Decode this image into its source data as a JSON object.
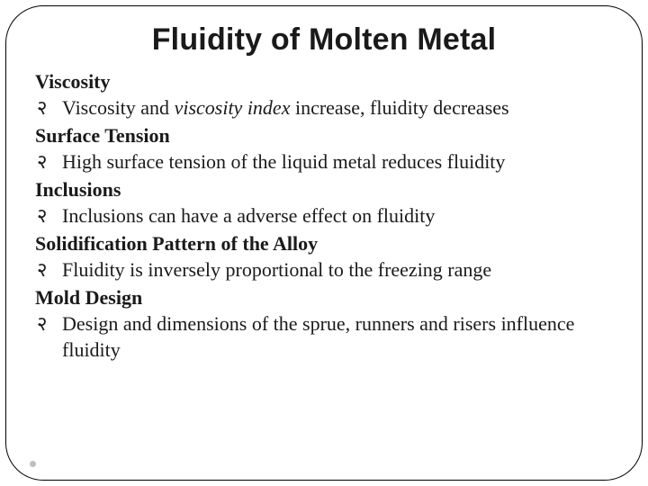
{
  "slide": {
    "title": "Fluidity of Molten Metal",
    "title_fontsize": 34,
    "title_fontfamily": "Arial",
    "title_fontweight": 700,
    "body_fontsize": 22,
    "body_fontfamily": "Times New Roman",
    "bullet_glyph": "२",
    "frame": {
      "border_color": "#000000",
      "border_width": 1.5,
      "corner_radius": 42,
      "background_color": "#ffffff"
    },
    "page_dot_color": "#bfbfbf",
    "sections": [
      {
        "heading": "Viscosity",
        "bullet_pre": "Viscosity and ",
        "bullet_italic": "viscosity index",
        "bullet_post": " increase, fluidity decreases"
      },
      {
        "heading": "Surface Tension",
        "bullet": "High surface tension of the liquid metal reduces fluidity"
      },
      {
        "heading": "Inclusions",
        "bullet": "Inclusions can have a adverse effect on fluidity"
      },
      {
        "heading": "Solidification Pattern of the Alloy",
        "bullet": "Fluidity is inversely proportional to the freezing range"
      },
      {
        "heading": "Mold Design",
        "bullet": "Design and dimensions of the sprue, runners and risers influence fluidity"
      }
    ]
  }
}
